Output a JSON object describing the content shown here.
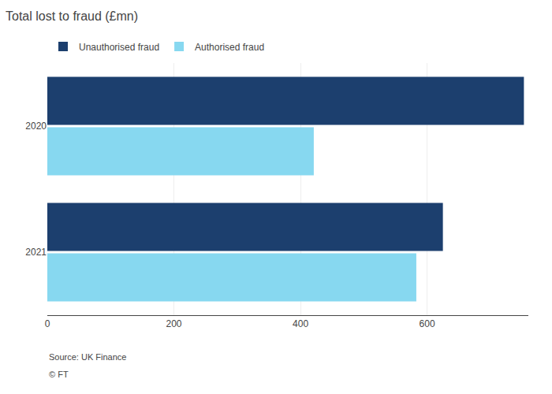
{
  "chart_data": {
    "type": "bar",
    "orientation": "horizontal",
    "title": "Total lost to fraud (£mn)",
    "categories": [
      "2020",
      "2021"
    ],
    "series": [
      {
        "name": "Unauthorised fraud",
        "color": "#1c3f6e",
        "values": [
          753,
          625
        ]
      },
      {
        "name": "Authorised fraud",
        "color": "#87d8f0",
        "values": [
          421,
          583
        ]
      }
    ],
    "xlim": [
      0,
      760
    ],
    "xticks": [
      0,
      200,
      400,
      600
    ],
    "grid": true,
    "legend": "top left",
    "annotations": [
      "Source: UK Finance",
      "© FT"
    ]
  }
}
